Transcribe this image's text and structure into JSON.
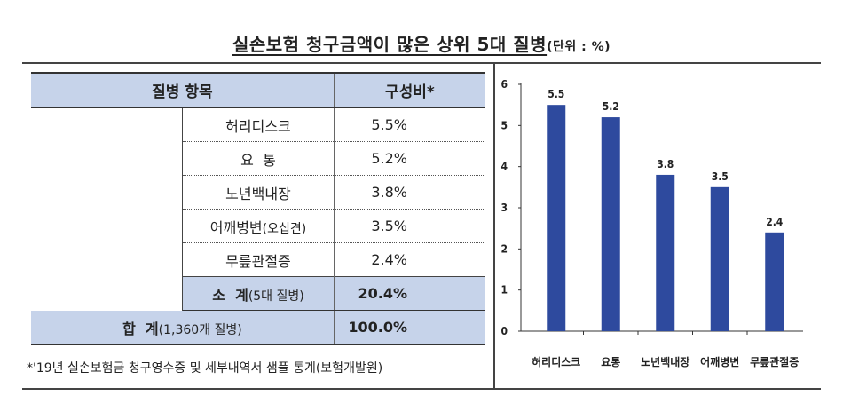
{
  "title": {
    "main": "실손보험 청구금액이 많은 상위 5대 질병",
    "unit": "(단위 : %)"
  },
  "table": {
    "headers": [
      "질병 항목",
      "구성비*"
    ],
    "rows": [
      {
        "name": "허리디스크",
        "value": "5.5%"
      },
      {
        "name": "요  통",
        "value": "5.2%"
      },
      {
        "name": "노년백내장",
        "value": "3.8%"
      },
      {
        "name": "어깨병변",
        "name_note": "(오십견)",
        "value": "3.5%"
      },
      {
        "name": "무릎관절증",
        "value": "2.4%"
      }
    ],
    "subtotal": {
      "label": "소  계",
      "label_note": "(5대 질병)",
      "value": "20.4%"
    },
    "total": {
      "label": "합  계",
      "label_note": "(1,360개 질병)",
      "value": "100.0%"
    }
  },
  "footnote": "*'19년 실손보험금 청구영수증 및 세부내역서 샘플 통계(보험개발원)",
  "chart_data": {
    "type": "bar",
    "categories": [
      "허리디스크",
      "요통",
      "노년백내장",
      "어깨병변",
      "무릎관절증"
    ],
    "values": [
      5.5,
      5.2,
      3.8,
      3.5,
      2.4
    ],
    "value_labels": [
      "5.5",
      "5.2",
      "3.8",
      "3.5",
      "2.4"
    ],
    "yticks": [
      "0",
      "1",
      "2",
      "3",
      "4",
      "5",
      "6"
    ],
    "ylim": [
      0,
      6
    ],
    "bar_color": "#2e4a9e",
    "grid": false,
    "legend": "none"
  }
}
